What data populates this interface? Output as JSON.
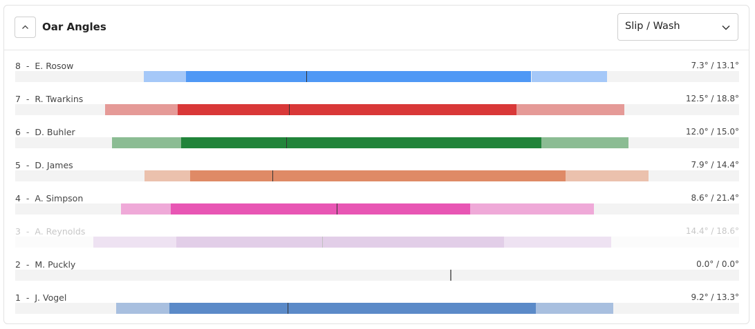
{
  "header": {
    "title": "Oar Angles",
    "dropdown": "Slip / Wash"
  },
  "rows": [
    {
      "seat": "8",
      "name": "E. Rosow",
      "angles": "7.3° / 13.1°",
      "color": "#4f98f5",
      "light": "#a5c8f8",
      "bar": [
        17.8,
        23.6,
        71.3,
        81.8
      ],
      "marker": 40.2,
      "dimmed": false
    },
    {
      "seat": "7",
      "name": "R. Twarkins",
      "angles": "12.5° / 18.8°",
      "color": "#d93838",
      "light": "#e59a97",
      "bar": [
        12.4,
        22.4,
        69.2,
        84.1
      ],
      "marker": 37.8,
      "dimmed": false
    },
    {
      "seat": "6",
      "name": "D. Buhler",
      "angles": "12.0° / 15.0°",
      "color": "#21843a",
      "light": "#8bbc93",
      "bar": [
        13.4,
        22.9,
        72.7,
        84.7
      ],
      "marker": 37.4,
      "dimmed": false
    },
    {
      "seat": "5",
      "name": "D. James",
      "angles": "7.9° / 14.4°",
      "color": "#df8a66",
      "light": "#ebc1ad",
      "bar": [
        17.9,
        24.2,
        76.0,
        87.5
      ],
      "marker": 35.5,
      "dimmed": false
    },
    {
      "seat": "4",
      "name": "A. Simpson",
      "angles": "8.6° / 21.4°",
      "color": "#e856b4",
      "light": "#efa9d8",
      "bar": [
        14.6,
        21.5,
        62.8,
        79.9
      ],
      "marker": 44.4,
      "dimmed": false
    },
    {
      "seat": "3",
      "name": "A. Reynolds",
      "angles": "14.4° / 18.6°",
      "color": "#a060b6",
      "light": "#c8a3d6",
      "bar": [
        10.8,
        22.3,
        67.5,
        82.3
      ],
      "marker": 42.4,
      "dimmed": true
    },
    {
      "seat": "2",
      "name": "M. Puckly",
      "angles": "0.0° / 0.0°",
      "color": "#888888",
      "light": "#bbbbbb",
      "bar": null,
      "marker": 60.1,
      "dimmed": false
    },
    {
      "seat": "1",
      "name": "J. Vogel",
      "angles": "9.2° / 13.3°",
      "color": "#5b8ac8",
      "light": "#a8bfdf",
      "bar": [
        13.9,
        21.3,
        71.9,
        82.6
      ],
      "marker": 37.6,
      "dimmed": false
    }
  ]
}
